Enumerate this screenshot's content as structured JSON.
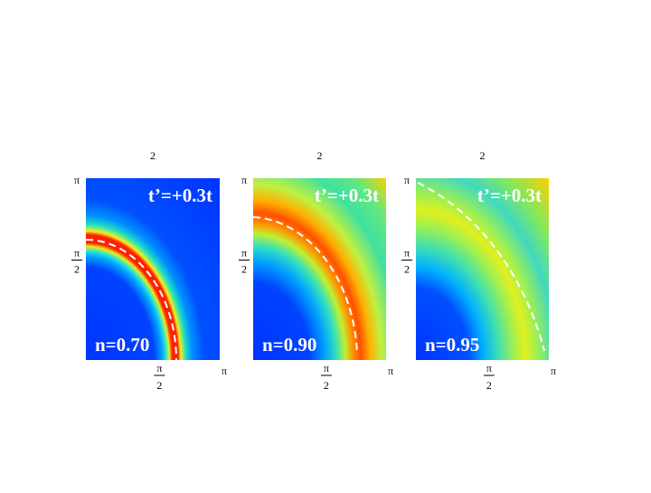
{
  "panels": [
    {
      "cut_label": "2",
      "y_top": "π",
      "y_mid_num": "π",
      "y_mid_den": "2",
      "x_mid_num": "π",
      "x_mid_den": "2",
      "x_end": "π",
      "label_t": "t’=+0.3t",
      "label_n": "n=0.70"
    },
    {
      "cut_label": "2",
      "y_top": "π",
      "y_mid_num": "π",
      "y_mid_den": "2",
      "x_mid_num": "π",
      "x_mid_den": "2",
      "x_end": "π",
      "label_t": "t’=+0.3t",
      "label_n": "n=0.90"
    },
    {
      "cut_label": "2",
      "y_top": "π",
      "y_mid_num": "π",
      "y_mid_den": "2",
      "x_mid_num": "π",
      "x_mid_den": "2",
      "x_end": "π",
      "label_t": "t’=+0.3t",
      "label_n": "n=0.95"
    }
  ]
}
